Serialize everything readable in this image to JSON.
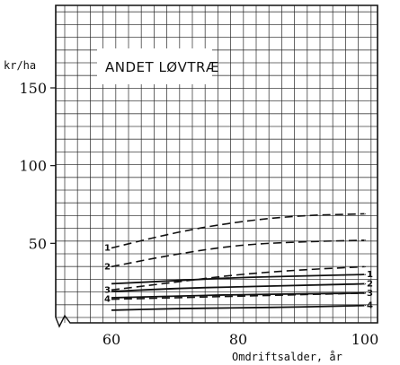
{
  "chart_data": {
    "type": "line",
    "title": "ANDET LØVTRÆ",
    "xlabel": "Omdriftsalder, år",
    "ylabel": "kr/ha",
    "xlim": [
      60,
      100
    ],
    "ylim": [
      0,
      165
    ],
    "xticks": [
      60,
      80,
      100
    ],
    "yticks": [
      50,
      100,
      150
    ],
    "grid": true,
    "x": [
      60,
      70,
      80,
      90,
      100
    ],
    "series": [
      {
        "name": "1",
        "style": "dashed",
        "values": [
          47,
          57,
          64,
          68,
          69
        ]
      },
      {
        "name": "2",
        "style": "dashed",
        "values": [
          35,
          43,
          49,
          51,
          52
        ]
      },
      {
        "name": "3",
        "style": "dashed",
        "values": [
          20,
          25,
          30,
          33,
          35
        ]
      },
      {
        "name": "4",
        "style": "dashed",
        "values": [
          14,
          15,
          16,
          17,
          18
        ]
      },
      {
        "name": "1",
        "style": "solid",
        "values": [
          24,
          26,
          28,
          29,
          30
        ]
      },
      {
        "name": "2",
        "style": "solid",
        "values": [
          19,
          21,
          22,
          23,
          24
        ]
      },
      {
        "name": "3",
        "style": "solid",
        "values": [
          15,
          16,
          17,
          17.5,
          18
        ]
      },
      {
        "name": "4",
        "style": "solid",
        "values": [
          7,
          8,
          8.5,
          9,
          10
        ]
      }
    ]
  }
}
